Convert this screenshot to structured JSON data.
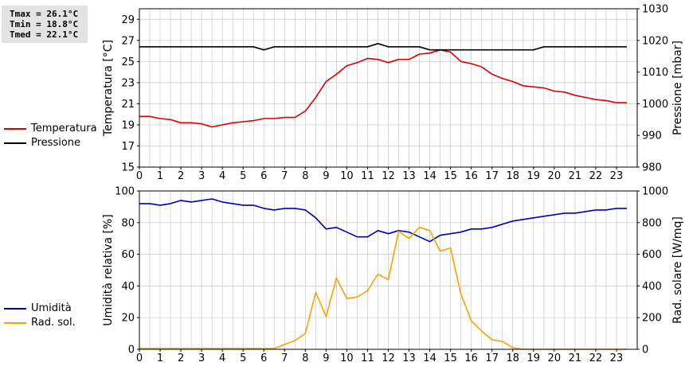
{
  "stats": {
    "tmax": "Tmax = 26.1°C",
    "tmin": "Tmin = 18.8°C",
    "tmed": "Tmed = 22.1°C"
  },
  "colors": {
    "temperature": "#dd0000",
    "pressure": "#000000",
    "humidity": "#0000bb",
    "radiation": "#f5a300",
    "grid": "#c8c8c8"
  },
  "chart_data": [
    {
      "type": "line",
      "xlim": [
        0,
        24
      ],
      "x_ticks": [
        "0",
        "1",
        "2",
        "3",
        "4",
        "5",
        "6",
        "7",
        "8",
        "9",
        "10",
        "11",
        "12",
        "13",
        "14",
        "15",
        "16",
        "17",
        "18",
        "19",
        "20",
        "21",
        "22",
        "23"
      ],
      "ylabel_left": "Temperatura [°C]",
      "ylabel_right": "Pressione [mbar]",
      "ylim_left": [
        15,
        30
      ],
      "yticks_left": [
        "15",
        "17",
        "19",
        "21",
        "23",
        "25",
        "27",
        "29"
      ],
      "ylim_right": [
        980,
        1030
      ],
      "yticks_right": [
        "980",
        "990",
        "1000",
        "1010",
        "1020",
        "1030"
      ],
      "grid": true,
      "legend": [
        "Temperatura",
        "Pressione"
      ],
      "series": [
        {
          "name": "Temperatura",
          "axis": "left",
          "x": [
            0,
            0.5,
            1,
            1.5,
            2,
            2.5,
            3,
            3.5,
            4,
            4.5,
            5,
            5.5,
            6,
            6.5,
            7,
            7.5,
            8,
            8.5,
            9,
            9.5,
            10,
            10.5,
            11,
            11.5,
            12,
            12.5,
            13,
            13.5,
            14,
            14.5,
            15,
            15.5,
            16,
            16.5,
            17,
            17.5,
            18,
            18.5,
            19,
            19.5,
            20,
            20.5,
            21,
            21.5,
            22,
            22.5,
            23,
            23.5
          ],
          "values": [
            19.8,
            19.8,
            19.6,
            19.5,
            19.2,
            19.2,
            19.1,
            18.8,
            19.0,
            19.2,
            19.3,
            19.4,
            19.6,
            19.6,
            19.7,
            19.7,
            20.3,
            21.6,
            23.1,
            23.8,
            24.6,
            24.9,
            25.3,
            25.2,
            24.9,
            25.2,
            25.2,
            25.7,
            25.8,
            26.1,
            25.9,
            25.0,
            24.8,
            24.5,
            23.8,
            23.4,
            23.1,
            22.7,
            22.6,
            22.5,
            22.2,
            22.1,
            21.8,
            21.6,
            21.4,
            21.3,
            21.1,
            21.1
          ]
        },
        {
          "name": "Pressione",
          "axis": "right",
          "x": [
            0,
            0.5,
            1,
            1.5,
            2,
            2.5,
            3,
            3.5,
            4,
            4.5,
            5,
            5.5,
            6,
            6.5,
            7,
            7.5,
            8,
            8.5,
            9,
            9.5,
            10,
            10.5,
            11,
            11.5,
            12,
            12.5,
            13,
            13.5,
            14,
            14.5,
            15,
            15.5,
            16,
            16.5,
            17,
            17.5,
            18,
            18.5,
            19,
            19.5,
            20,
            20.5,
            21,
            21.5,
            22,
            22.5,
            23,
            23.5
          ],
          "values": [
            1018,
            1018,
            1018,
            1018,
            1018,
            1018,
            1018,
            1018,
            1018,
            1018,
            1018,
            1018,
            1017,
            1018,
            1018,
            1018,
            1018,
            1018,
            1018,
            1018,
            1018,
            1018,
            1018,
            1019,
            1018,
            1018,
            1018,
            1018,
            1017,
            1017,
            1017,
            1017,
            1017,
            1017,
            1017,
            1017,
            1017,
            1017,
            1017,
            1018,
            1018,
            1018,
            1018,
            1018,
            1018,
            1018,
            1018,
            1018
          ]
        }
      ]
    },
    {
      "type": "line",
      "xlim": [
        0,
        24
      ],
      "x_ticks": [
        "0",
        "1",
        "2",
        "3",
        "4",
        "5",
        "6",
        "7",
        "8",
        "9",
        "10",
        "11",
        "12",
        "13",
        "14",
        "15",
        "16",
        "17",
        "18",
        "19",
        "20",
        "21",
        "22",
        "23"
      ],
      "ylabel_left": "Umidità relativa [%]",
      "ylabel_right": "Rad. solare [W/mq]",
      "ylim_left": [
        0,
        100
      ],
      "yticks_left": [
        "0",
        "20",
        "40",
        "60",
        "80",
        "100"
      ],
      "ylim_right": [
        0,
        1000
      ],
      "yticks_right": [
        "0",
        "200",
        "400",
        "600",
        "800",
        "1000"
      ],
      "grid": true,
      "legend": [
        "Umidità",
        "Rad. sol."
      ],
      "series": [
        {
          "name": "Umidità",
          "axis": "left",
          "x": [
            0,
            0.5,
            1,
            1.5,
            2,
            2.5,
            3,
            3.5,
            4,
            4.5,
            5,
            5.5,
            6,
            6.5,
            7,
            7.5,
            8,
            8.5,
            9,
            9.5,
            10,
            10.5,
            11,
            11.5,
            12,
            12.5,
            13,
            13.5,
            14,
            14.5,
            15,
            15.5,
            16,
            16.5,
            17,
            17.5,
            18,
            18.5,
            19,
            19.5,
            20,
            20.5,
            21,
            21.5,
            22,
            22.5,
            23,
            23.5
          ],
          "values": [
            92,
            92,
            91,
            92,
            94,
            93,
            94,
            95,
            93,
            92,
            91,
            91,
            89,
            88,
            89,
            89,
            88,
            83,
            76,
            77,
            74,
            71,
            71,
            75,
            73,
            75,
            74,
            71,
            68,
            72,
            73,
            74,
            76,
            76,
            77,
            79,
            81,
            82,
            83,
            84,
            85,
            86,
            86,
            87,
            88,
            88,
            89,
            89
          ]
        },
        {
          "name": "Rad. sol.",
          "axis": "right",
          "x": [
            0,
            0.5,
            1,
            1.5,
            2,
            2.5,
            3,
            3.5,
            4,
            4.5,
            5,
            5.5,
            6,
            6.5,
            7,
            7.5,
            8,
            8.5,
            9,
            9.5,
            10,
            10.5,
            11,
            11.5,
            12,
            12.5,
            13,
            13.5,
            14,
            14.5,
            15,
            15.5,
            16,
            16.5,
            17,
            17.5,
            18,
            18.5,
            19,
            19.5,
            20,
            20.5,
            21,
            21.5,
            22,
            22.5,
            23,
            23.5
          ],
          "values": [
            5,
            5,
            5,
            5,
            5,
            5,
            5,
            5,
            5,
            5,
            5,
            5,
            5,
            5,
            30,
            55,
            100,
            360,
            205,
            450,
            320,
            330,
            370,
            475,
            440,
            745,
            700,
            770,
            750,
            620,
            640,
            350,
            180,
            115,
            60,
            50,
            10,
            0,
            0,
            0,
            0,
            0,
            0,
            0,
            0,
            0,
            0,
            0
          ]
        }
      ]
    }
  ]
}
